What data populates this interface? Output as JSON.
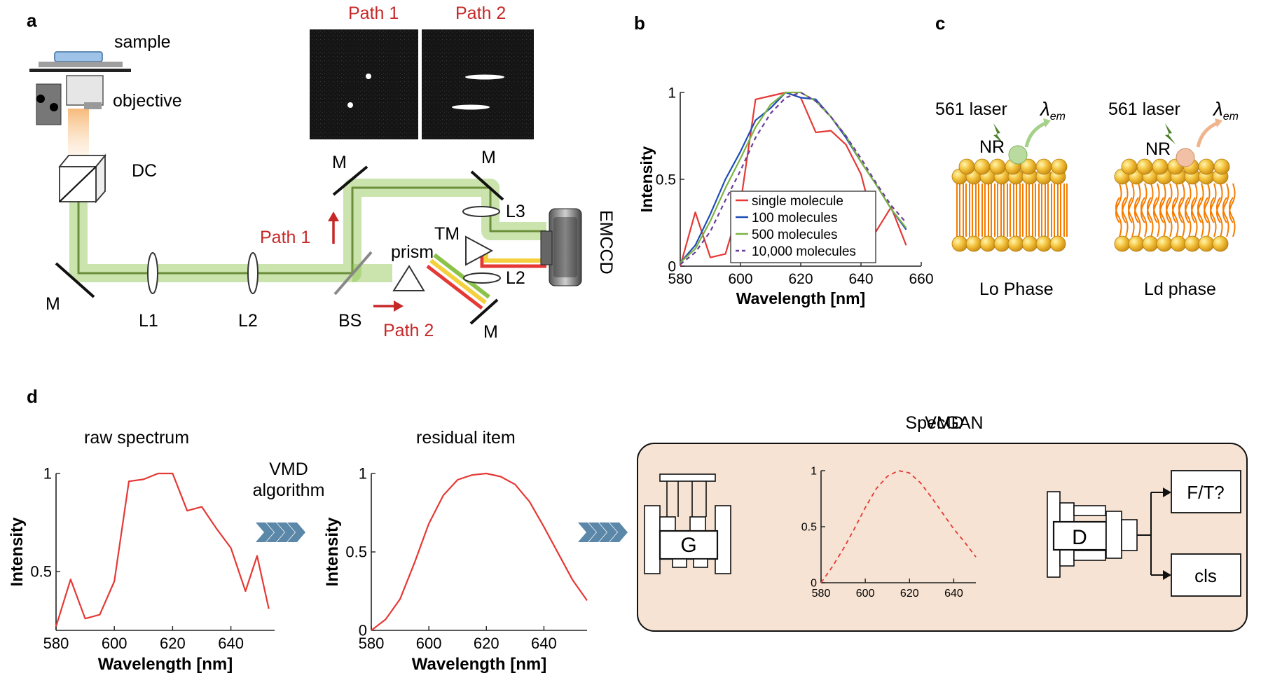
{
  "panel_letters": {
    "a": "a",
    "b": "b",
    "c": "c",
    "d": "d"
  },
  "panel_a": {
    "labels": {
      "sample": "sample",
      "objective": "objective",
      "dc": "DC",
      "m": "M",
      "l1": "L1",
      "l2": "L2",
      "l3": "L3",
      "bs": "BS",
      "prism": "prism",
      "tm": "TM",
      "emccd": "EMCCD"
    },
    "path1": "Path 1",
    "path2": "Path 2"
  },
  "panel_c": {
    "laser": "561 laser",
    "nr": "NR",
    "emission": "λ",
    "emission_sub": "em",
    "phase_lo": "Lo Phase",
    "phase_ld": "Ld phase"
  },
  "panel_d": {
    "raw_title": "raw spectrum",
    "vmd_line1": "VMD",
    "vmd_line2": "algorithm",
    "residual_title": "residual item",
    "specgan_title": "SpecGAN",
    "generator": "G",
    "discriminator": "D",
    "out_ft": "F/T?",
    "out_cls": "cls"
  },
  "colors": {
    "red": "#e53935",
    "blue": "#1e4db7",
    "green": "#7cb342",
    "purple": "#6a3d9a",
    "beam": "#8bc34a",
    "specgan_bg": "#f6e3d3",
    "chevron": "#5b87a8"
  },
  "chart_data": [
    {
      "id": "b",
      "type": "line",
      "xlabel": "Wavelength [nm]",
      "ylabel": "Intensity",
      "xlim": [
        580,
        660
      ],
      "ylim": [
        0,
        1
      ],
      "xticks": [
        "580",
        "600",
        "620",
        "640",
        "660"
      ],
      "yticks": [
        "0",
        "0.5",
        "1"
      ],
      "legend_position": "lower-center",
      "series": [
        {
          "name": "single molecule",
          "color": "#e53935",
          "dash": false,
          "x": [
            580,
            585,
            590,
            595,
            600,
            605,
            610,
            615,
            620,
            625,
            630,
            635,
            640,
            645,
            650,
            655
          ],
          "y": [
            0.0,
            0.31,
            0.05,
            0.07,
            0.36,
            0.96,
            0.98,
            1.0,
            0.97,
            0.77,
            0.78,
            0.7,
            0.53,
            0.2,
            0.34,
            0.12
          ]
        },
        {
          "name": "100 molecules",
          "color": "#1e4db7",
          "dash": false,
          "x": [
            580,
            585,
            590,
            595,
            600,
            605,
            610,
            615,
            620,
            625,
            630,
            635,
            640,
            645,
            650,
            655
          ],
          "y": [
            0.02,
            0.12,
            0.3,
            0.5,
            0.66,
            0.84,
            0.91,
            1.0,
            0.97,
            0.96,
            0.86,
            0.74,
            0.6,
            0.47,
            0.33,
            0.21
          ]
        },
        {
          "name": "500 molecules",
          "color": "#7cb342",
          "dash": false,
          "x": [
            580,
            585,
            590,
            595,
            600,
            605,
            610,
            615,
            620,
            625,
            630,
            635,
            640,
            645,
            650,
            655
          ],
          "y": [
            0.02,
            0.1,
            0.26,
            0.45,
            0.62,
            0.8,
            0.93,
            1.0,
            1.0,
            0.95,
            0.86,
            0.75,
            0.6,
            0.47,
            0.33,
            0.22
          ]
        },
        {
          "name": "10,000 molecules",
          "color": "#6a3d9a",
          "dash": true,
          "x": [
            580,
            585,
            590,
            595,
            600,
            605,
            610,
            615,
            620,
            625,
            630,
            635,
            640,
            645,
            650,
            655
          ],
          "y": [
            0.01,
            0.08,
            0.2,
            0.38,
            0.55,
            0.74,
            0.88,
            0.97,
            1.0,
            0.95,
            0.86,
            0.75,
            0.62,
            0.48,
            0.35,
            0.25
          ]
        }
      ]
    },
    {
      "id": "d-raw",
      "type": "line",
      "xlabel": "Wavelength [nm]",
      "ylabel": "Intensity",
      "xlim": [
        580,
        655
      ],
      "ylim": [
        0.2,
        1
      ],
      "xticks": [
        "580",
        "600",
        "620",
        "640"
      ],
      "yticks": [
        "0.5",
        "1"
      ],
      "series": [
        {
          "color": "#e53935",
          "x": [
            580,
            585,
            590,
            595,
            600,
            605,
            610,
            615,
            620,
            625,
            630,
            635,
            640,
            645,
            649,
            653
          ],
          "y": [
            0.22,
            0.46,
            0.26,
            0.28,
            0.45,
            0.96,
            0.97,
            1.0,
            1.0,
            0.81,
            0.83,
            0.72,
            0.62,
            0.4,
            0.58,
            0.31
          ]
        }
      ]
    },
    {
      "id": "d-residual",
      "type": "line",
      "xlabel": "Wavelength [nm]",
      "ylabel": "Intensity",
      "xlim": [
        580,
        655
      ],
      "ylim": [
        0,
        1
      ],
      "xticks": [
        "580",
        "600",
        "620",
        "640"
      ],
      "yticks": [
        "0",
        "0.5",
        "1"
      ],
      "series": [
        {
          "color": "#e53935",
          "x": [
            580,
            585,
            590,
            595,
            600,
            605,
            610,
            615,
            620,
            625,
            630,
            635,
            640,
            645,
            650,
            655
          ],
          "y": [
            0.0,
            0.07,
            0.2,
            0.43,
            0.68,
            0.86,
            0.96,
            0.99,
            1.0,
            0.98,
            0.93,
            0.82,
            0.66,
            0.49,
            0.32,
            0.19
          ]
        }
      ]
    },
    {
      "id": "d-specgan",
      "type": "line",
      "xlim": [
        580,
        650
      ],
      "ylim": [
        0,
        1
      ],
      "xticks": [
        "580",
        "600",
        "620",
        "640"
      ],
      "yticks": [
        "0",
        "0.5",
        "1"
      ],
      "series": [
        {
          "color": "#e53935",
          "dash": true,
          "x": [
            580,
            585,
            590,
            595,
            600,
            605,
            610,
            615,
            620,
            625,
            630,
            635,
            640,
            645,
            650
          ],
          "y": [
            0.0,
            0.14,
            0.3,
            0.48,
            0.67,
            0.84,
            0.95,
            1.0,
            0.98,
            0.89,
            0.76,
            0.62,
            0.48,
            0.36,
            0.23
          ]
        }
      ]
    }
  ]
}
